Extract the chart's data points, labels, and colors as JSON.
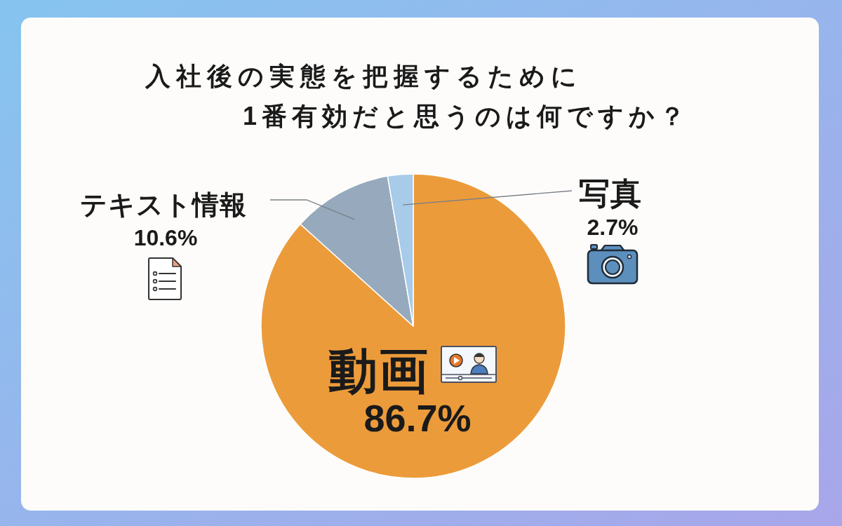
{
  "chart_data": {
    "type": "pie",
    "title": "入社後の実態を把握するために\n1番有効だと思うのは何ですか？",
    "categories": [
      "動画",
      "テキスト情報",
      "写真"
    ],
    "values": [
      86.7,
      10.6,
      2.7
    ],
    "colors": [
      "#ec9b3b",
      "#97aabd",
      "#a7cbe9"
    ],
    "value_labels": [
      "86.7%",
      "10.6%",
      "2.7%"
    ]
  }
}
